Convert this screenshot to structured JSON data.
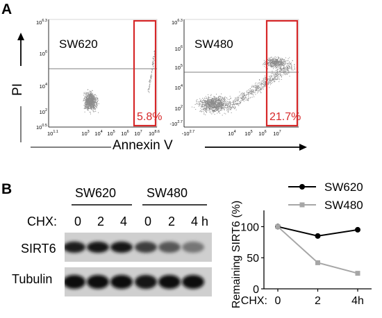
{
  "panelA": {
    "letter": "A",
    "yAxisLabel": "PI",
    "xAxisLabel": "Annexin V",
    "plots": [
      {
        "sample": "SW620",
        "gatePercent": "5.8%",
        "yTicks": [
          "10^{6.3}",
          "10^{6}",
          "10^{4}",
          "10^{2}",
          "10^{0.5}"
        ],
        "xTicks": [
          "10^{1.1}",
          "10^{3}",
          "10^{4}",
          "10^{5}",
          "10^{6}",
          "10^{7}",
          "10^{8.6}"
        ]
      },
      {
        "sample": "SW480",
        "gatePercent": "21.7%",
        "yTicks": [
          "10^{6.3}",
          "10^{6}",
          "10^{5}",
          "10^{4}",
          "10^{2}",
          "-10^{2.7}"
        ],
        "xTicks": [
          "-10^{2.7}",
          "10^{4}",
          "10^{5}",
          "10^{6}",
          "10^{7}"
        ]
      }
    ]
  },
  "panelB": {
    "letter": "B",
    "blot": {
      "groups": [
        "SW620",
        "SW480"
      ],
      "chxLabel": "CHX:",
      "lanes": [
        "0",
        "2",
        "4",
        "0",
        "2",
        "4 h"
      ],
      "rows": [
        "SIRT6",
        "Tubulin"
      ],
      "intensities": {
        "SIRT6": [
          0.9,
          0.95,
          0.92,
          0.72,
          0.58,
          0.4
        ],
        "Tubulin": [
          0.97,
          1.0,
          0.98,
          0.95,
          0.97,
          0.96
        ]
      }
    },
    "chart_data": {
      "type": "line",
      "ylabel": "Remaining SIRT6 (%)",
      "xPrefix": "CHX:",
      "x": [
        0,
        2,
        4
      ],
      "xTickLabels": [
        "0",
        "2",
        "4h"
      ],
      "yTicks": [
        0,
        50,
        100
      ],
      "ylim": [
        0,
        115
      ],
      "legend_position": "top-right",
      "series": [
        {
          "name": "SW620",
          "values": [
            100,
            85,
            95
          ],
          "color": "#000000",
          "marker": "circle"
        },
        {
          "name": "SW480",
          "values": [
            100,
            42,
            25
          ],
          "color": "#a6a6a6",
          "marker": "square"
        }
      ]
    }
  },
  "colors": {
    "gate": "#d62728",
    "percent": "#d62728",
    "dots": "#8c8c8c"
  }
}
